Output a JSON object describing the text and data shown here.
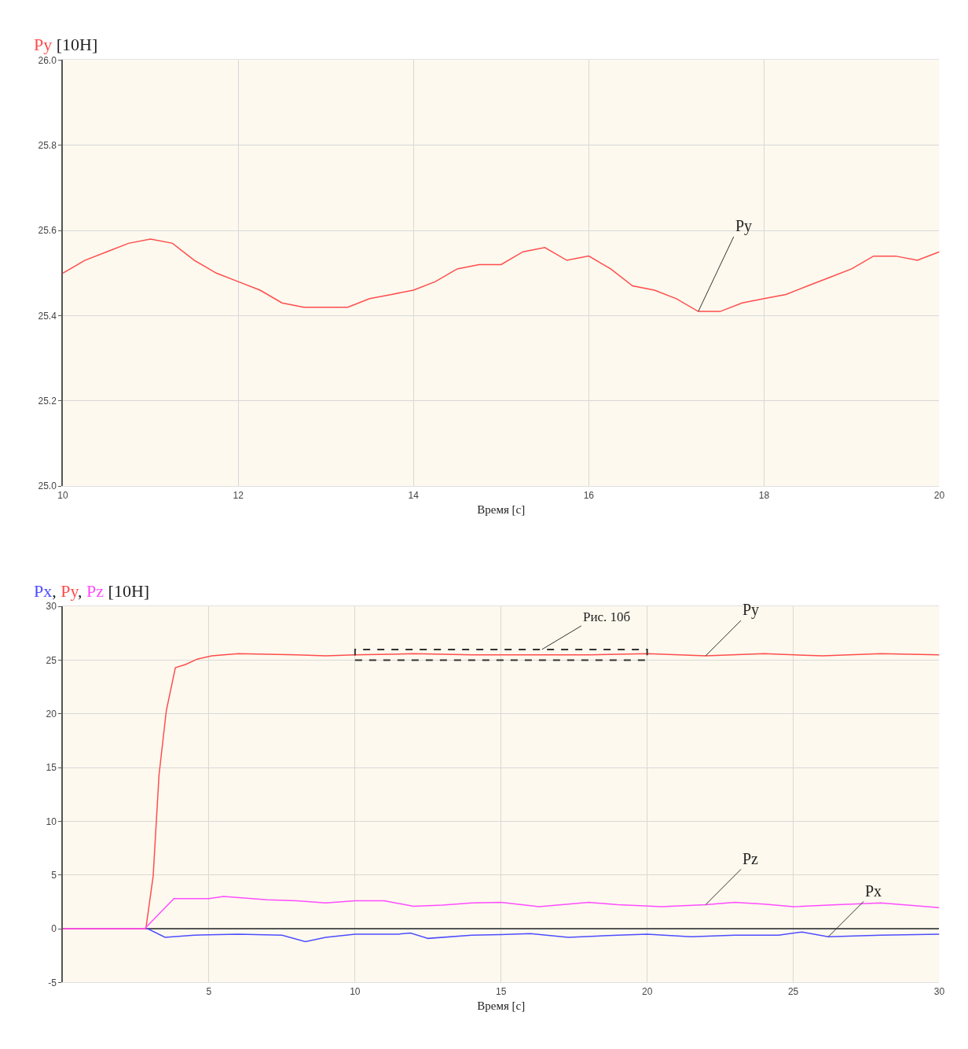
{
  "chart_data": [
    {
      "type": "line",
      "ylabel": "Py [10H]",
      "xlabel": "Время [c]",
      "x": [
        10,
        10.25,
        10.5,
        10.75,
        11,
        11.25,
        11.5,
        11.75,
        12,
        12.25,
        12.5,
        12.75,
        13,
        13.25,
        13.5,
        13.75,
        14,
        14.25,
        14.5,
        14.75,
        15,
        15.25,
        15.5,
        15.75,
        16,
        16.25,
        16.5,
        16.75,
        17,
        17.25,
        17.5,
        17.75,
        18,
        18.25,
        18.5,
        18.75,
        19,
        19.25,
        19.5,
        19.75,
        20
      ],
      "series": [
        {
          "name": "Py",
          "color": "#ff4d4d",
          "values": [
            25.5,
            25.53,
            25.55,
            25.57,
            25.58,
            25.57,
            25.53,
            25.5,
            25.48,
            25.46,
            25.43,
            25.42,
            25.42,
            25.42,
            25.44,
            25.45,
            25.46,
            25.48,
            25.51,
            25.52,
            25.52,
            25.55,
            25.56,
            25.53,
            25.54,
            25.51,
            25.47,
            25.46,
            25.44,
            25.41,
            25.41,
            25.43,
            25.44,
            25.45,
            25.47,
            25.49,
            25.51,
            25.54,
            25.54,
            25.53,
            25.55
          ]
        }
      ],
      "xlim": [
        10,
        20
      ],
      "ylim": [
        25.0,
        26.0
      ],
      "xticks": [
        10,
        12,
        14,
        16,
        18,
        20
      ],
      "yticks": [
        {
          "value": 25.0,
          "label": "25.0"
        },
        25.2,
        25.4,
        25.6,
        25.8,
        {
          "value": 26.0,
          "label": "26.0"
        }
      ],
      "grid": true
    },
    {
      "type": "line",
      "ylabel": "Px, Py, Pz [10H]",
      "xlabel": "Время [c]",
      "series": [
        {
          "name": "Px",
          "color": "#4d4dff",
          "x": [
            0,
            2.9,
            3.5,
            4.5,
            6,
            7.5,
            8.3,
            9,
            10,
            11.5,
            11.9,
            12.5,
            14,
            15,
            16,
            17.3,
            19,
            20,
            21.5,
            23,
            24.5,
            25.3,
            26.2,
            28,
            30
          ],
          "values": [
            0,
            0,
            -0.8,
            -0.6,
            -0.5,
            -0.6,
            -1.2,
            -0.8,
            -0.5,
            -0.5,
            -0.4,
            -0.9,
            -0.6,
            -0.55,
            -0.45,
            -0.8,
            -0.6,
            -0.5,
            -0.75,
            -0.6,
            -0.6,
            -0.3,
            -0.75,
            -0.6,
            -0.5
          ]
        },
        {
          "name": "Py",
          "color": "#ff4d4d",
          "x": [
            0,
            2.5,
            2.84,
            3.09,
            3.29,
            3.54,
            3.85,
            4.2,
            4.6,
            5.1,
            6,
            8,
            9,
            10,
            12,
            14,
            16,
            18,
            20,
            22,
            24,
            26,
            28,
            30
          ],
          "values": [
            0,
            0,
            0,
            4.9,
            14.3,
            20.3,
            24.3,
            24.6,
            25.1,
            25.4,
            25.6,
            25.5,
            25.4,
            25.5,
            25.6,
            25.5,
            25.5,
            25.5,
            25.6,
            25.4,
            25.6,
            25.4,
            25.6,
            25.5
          ]
        },
        {
          "name": "Pz",
          "color": "#ff4dff",
          "x": [
            0,
            2.8,
            3.8,
            5,
            5.5,
            7,
            8,
            9,
            10,
            11,
            12,
            13,
            14,
            15,
            16.3,
            18,
            19,
            20.5,
            22,
            23,
            24,
            25,
            26.5,
            28,
            30
          ],
          "values": [
            0,
            0,
            2.8,
            2.8,
            3.0,
            2.7,
            2.6,
            2.4,
            2.6,
            2.6,
            2.1,
            2.2,
            2.4,
            2.46,
            2.05,
            2.46,
            2.24,
            2.05,
            2.24,
            2.46,
            2.3,
            2.05,
            2.24,
            2.4,
            1.97
          ]
        }
      ],
      "xlim": [
        0,
        30
      ],
      "ylim": [
        -5,
        30
      ],
      "xticks": [
        5,
        10,
        15,
        20,
        25,
        30
      ],
      "yticks": [
        -5,
        0,
        5,
        10,
        15,
        20,
        25,
        30
      ],
      "grid": true,
      "annotations": [
        "Рис. 10б"
      ]
    }
  ]
}
